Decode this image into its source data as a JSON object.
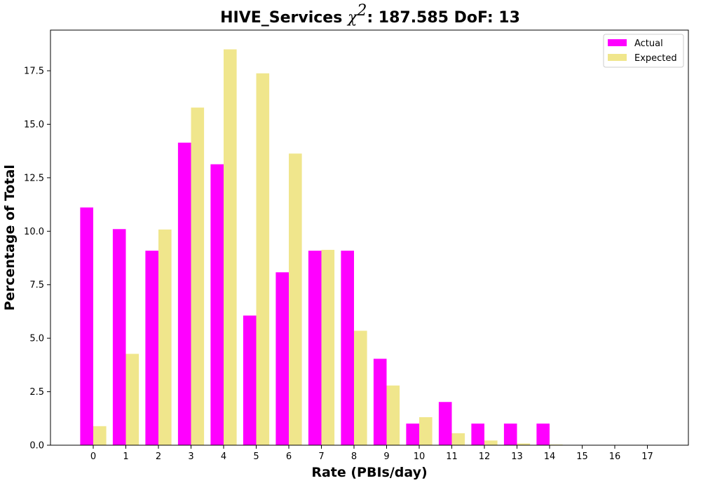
{
  "chart_data": {
    "type": "bar",
    "title": {
      "prefix": "HIVE_Services ",
      "chi_symbol": "χ",
      "chi_exponent": "2",
      "suffix": ": 187.585 DoF: 13"
    },
    "xlabel": "Rate (PBIs/day)",
    "ylabel": "Percentage of Total",
    "categories": [
      "0",
      "1",
      "2",
      "3",
      "4",
      "5",
      "6",
      "7",
      "8",
      "9",
      "10",
      "11",
      "12",
      "13",
      "14",
      "15",
      "16",
      "17"
    ],
    "series": [
      {
        "name": "Actual",
        "color": "#ff00ff",
        "values": [
          11.11,
          10.1,
          9.09,
          14.14,
          13.13,
          6.06,
          8.08,
          9.09,
          9.09,
          4.04,
          1.01,
          2.02,
          1.01,
          1.01,
          1.01,
          0,
          0,
          0
        ]
      },
      {
        "name": "Expected",
        "color": "#f0e68c",
        "values": [
          0.89,
          4.27,
          10.08,
          15.78,
          18.5,
          17.38,
          13.63,
          9.13,
          5.35,
          2.79,
          1.31,
          0.56,
          0.22,
          0.08,
          0.03,
          0.01,
          0.0,
          0.0
        ]
      }
    ],
    "ylim": [
      0,
      19.4
    ],
    "yticks": [
      "0.0",
      "2.5",
      "5.0",
      "7.5",
      "10.0",
      "12.5",
      "15.0",
      "17.5"
    ],
    "grid": false,
    "legend_position": "top-right"
  }
}
